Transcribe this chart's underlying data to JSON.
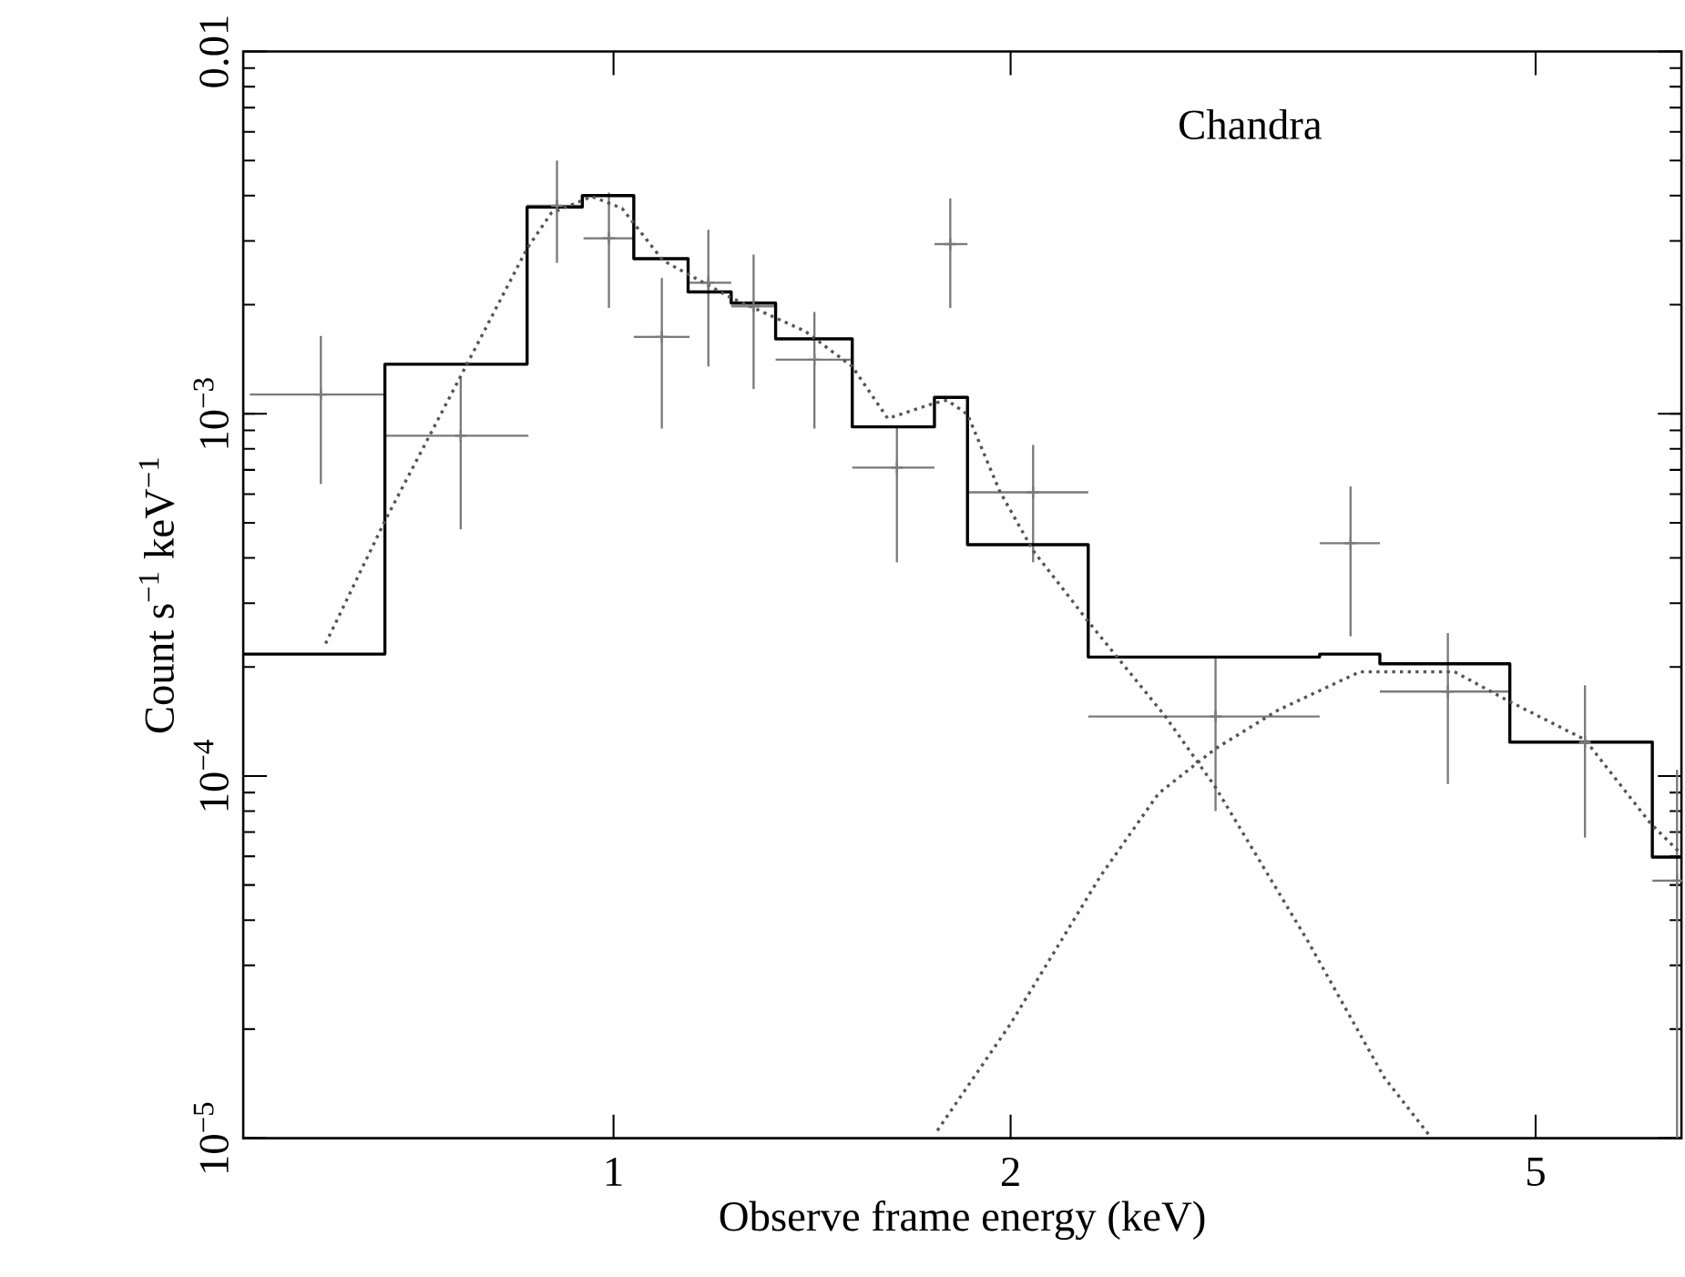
{
  "chart_data": {
    "type": "scatter",
    "log": "xy",
    "marker": "none",
    "xlabel": "Observe frame energy (keV)",
    "ylabel": "Count s$^{−1}$ keV$^{−1}$",
    "xlim": [
      0.524,
      6.45
    ],
    "ylim": [
      1e-05,
      0.01
    ],
    "xticks": [
      1,
      2,
      5
    ],
    "yticks": [
      {
        "value": 1e-05,
        "label": "10$^{−5}$"
      },
      {
        "value": 0.0001,
        "label": "10$^{−4}$"
      },
      {
        "value": 0.001,
        "label": "10$^{−3}$"
      },
      0.01
    ],
    "annotations": [
      "Chandra"
    ],
    "series": [
      {
        "marker": "cross",
        "color": "#7a7a7a",
        "x": [
          0.6,
          0.766,
          0.906,
          0.992,
          1.088,
          1.18,
          1.277,
          1.42,
          1.64,
          1.8,
          2.08,
          2.86,
          3.62,
          4.29,
          5.45,
          6.4
        ],
        "values": [
          0.00113,
          0.00087,
          0.00375,
          0.00305,
          0.00163,
          0.0023,
          0.00198,
          0.00141,
          0.00071,
          0.00294,
          0.000607,
          0.000146,
          0.000439,
          0.000171,
          0.000124,
          5.14e-05
        ],
        "errors": [
          [
            0.00064,
            0.00164
          ],
          [
            0.00048,
            0.00127
          ],
          [
            0.00261,
            0.005
          ],
          [
            0.00196,
            0.00408
          ],
          [
            0.00091,
            0.00237
          ],
          [
            0.00135,
            0.00322
          ],
          [
            0.00117,
            0.00275
          ],
          [
            0.00091,
            0.00191
          ],
          [
            0.000389,
            0.00092
          ],
          [
            0.00196,
            0.00393
          ],
          [
            0.000389,
            0.00082
          ],
          [
            8e-05,
            0.000211
          ],
          [
            0.000243,
            0.00063
          ],
          [
            9.5e-05,
            0.000248
          ],
          [
            6.76e-05,
            0.000178
          ],
          [
            1e-05,
            0.000104
          ]
        ],
        "xerrors": [
          [
            0.53,
            0.671
          ],
          [
            0.671,
            0.862
          ],
          [
            0.859,
            0.949
          ],
          [
            0.949,
            1.036
          ],
          [
            1.036,
            1.142
          ],
          [
            1.142,
            1.228
          ],
          [
            1.228,
            1.327
          ],
          [
            1.327,
            1.517
          ],
          [
            1.517,
            1.751
          ],
          [
            1.751,
            1.855
          ],
          [
            1.855,
            2.29
          ],
          [
            2.29,
            3.43
          ],
          [
            3.43,
            3.81
          ],
          [
            3.81,
            4.77
          ],
          [
            4.77,
            6.13
          ],
          [
            6.13,
            6.45
          ]
        ]
      },
      {
        "type": "step",
        "color": "#000000",
        "x": [
          0.524,
          0.671,
          0.86,
          0.947,
          1.036,
          1.139,
          1.228,
          1.327,
          1.517,
          1.751,
          1.855,
          2.29,
          3.43,
          3.81,
          4.78,
          6.13,
          6.45
        ],
        "values": [
          0.000217,
          0.00137,
          0.00372,
          0.004,
          0.00268,
          0.00217,
          0.00202,
          0.00161,
          0.00092,
          0.00111,
          0.000435,
          0.000213,
          0.000217,
          0.000204,
          0.000124,
          5.97e-05,
          5.97e-05
        ]
      },
      {
        "type": "line",
        "color": "#555555",
        "line_style": "dotted",
        "x": [
          0.605,
          0.671,
          0.766,
          0.86,
          0.897,
          0.963,
          1.015,
          1.09,
          1.228,
          1.397,
          1.517,
          1.614,
          1.751,
          1.79,
          1.855,
          1.963,
          2.08,
          2.29,
          2.62,
          2.86,
          3.36,
          3.84,
          4.17
        ],
        "values": [
          0.000232,
          0.000506,
          0.00127,
          0.00286,
          0.00358,
          0.00398,
          0.00369,
          0.00265,
          0.00209,
          0.00169,
          0.00135,
          0.00097,
          0.00107,
          0.00109,
          0.000996,
          0.00061,
          0.000419,
          0.000267,
          0.000146,
          9.3e-05,
          3.5e-05,
          1.47e-05,
          1e-05
        ]
      },
      {
        "type": "line",
        "color": "#555555",
        "line_style": "dotted",
        "x": [
          1.76,
          2.0,
          2.34,
          2.59,
          2.86,
          3.19,
          3.68,
          4.34,
          4.77,
          5.45,
          6.11,
          6.43
        ],
        "values": [
          1.05e-05,
          2.07e-05,
          5.3e-05,
          8.96e-05,
          0.000119,
          0.000152,
          0.000194,
          0.000194,
          0.000161,
          0.000126,
          7.4e-05,
          6.15e-05
        ]
      }
    ]
  }
}
